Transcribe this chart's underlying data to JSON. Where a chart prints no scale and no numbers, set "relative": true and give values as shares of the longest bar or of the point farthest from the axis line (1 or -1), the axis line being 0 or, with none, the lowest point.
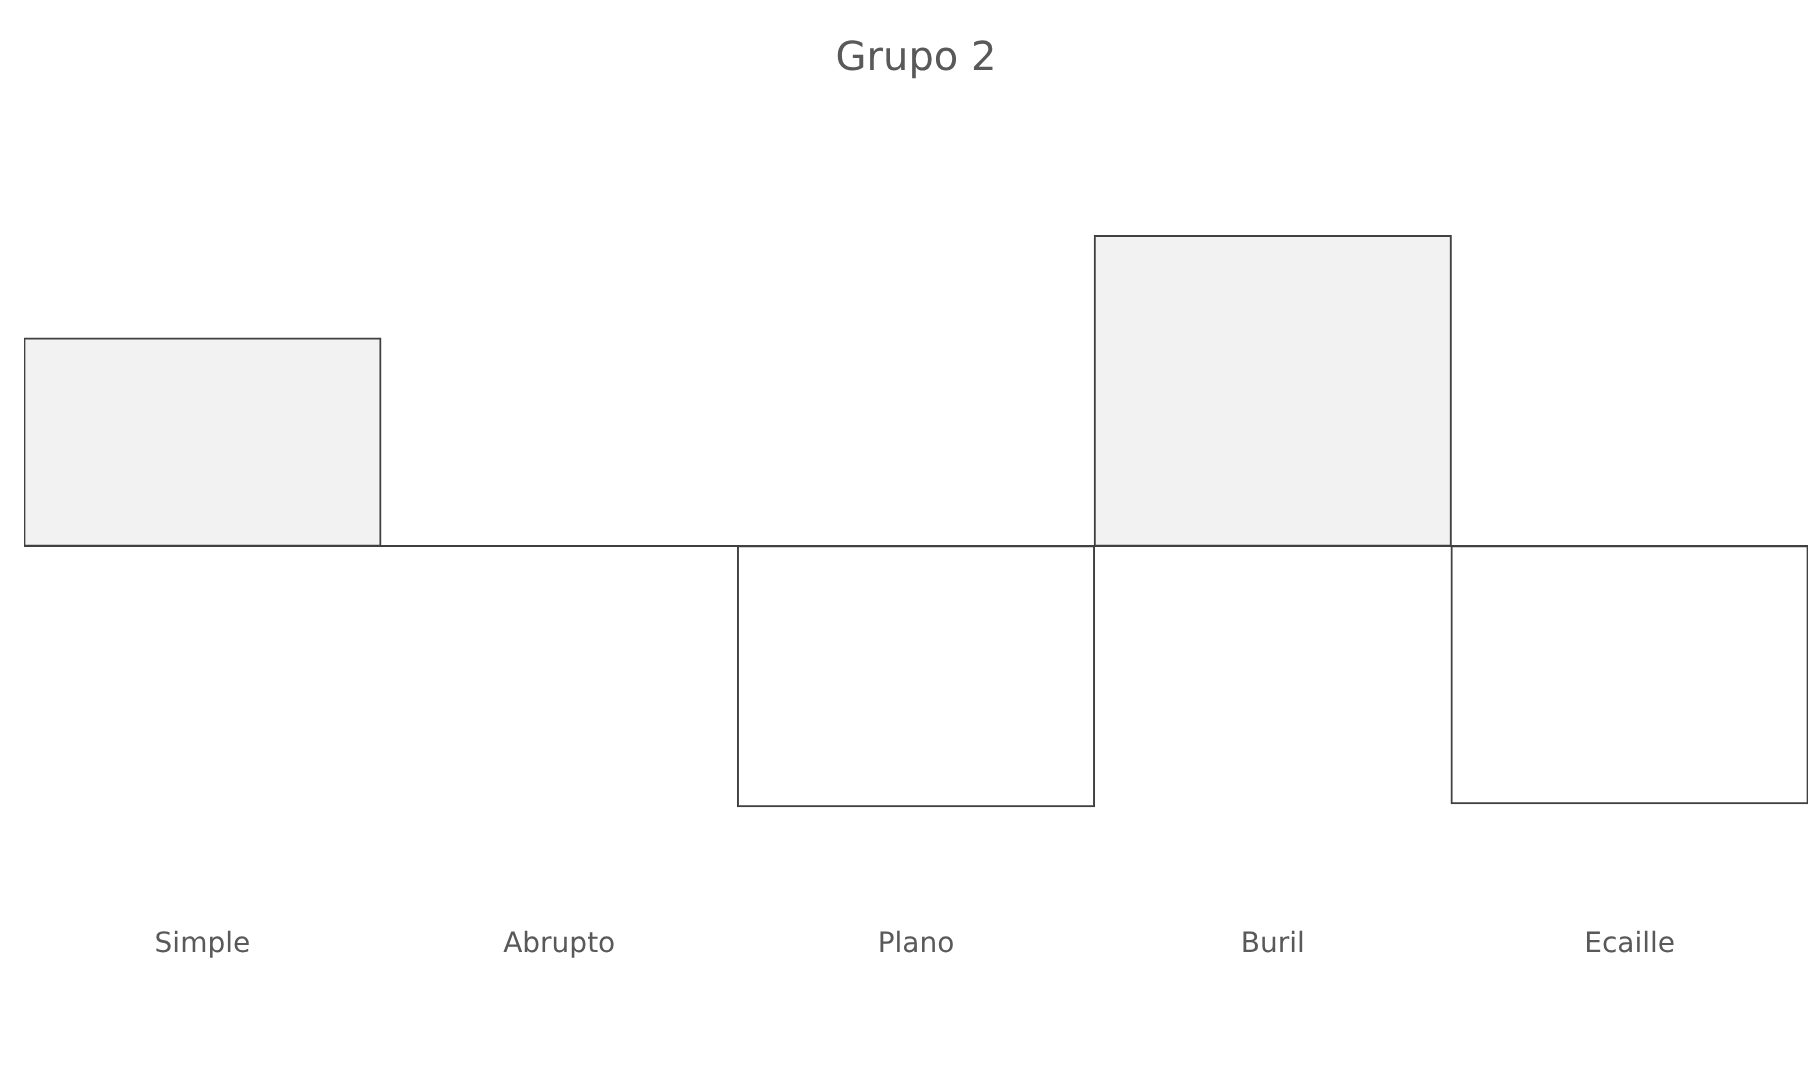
{
  "chart_data": {
    "type": "bar",
    "title": "Grupo 2",
    "categories": [
      "Simple",
      "Abrupto",
      "Plano",
      "Buril",
      "Ecaille"
    ],
    "values": [
      0.67,
      0,
      -0.84,
      1,
      -0.83
    ],
    "colors": [
      "#f2f2f2",
      "#f2f2f2",
      "#ffffff",
      "#f2f2f2",
      "#ffffff"
    ],
    "relative": true,
    "grid": false,
    "legend": false
  }
}
